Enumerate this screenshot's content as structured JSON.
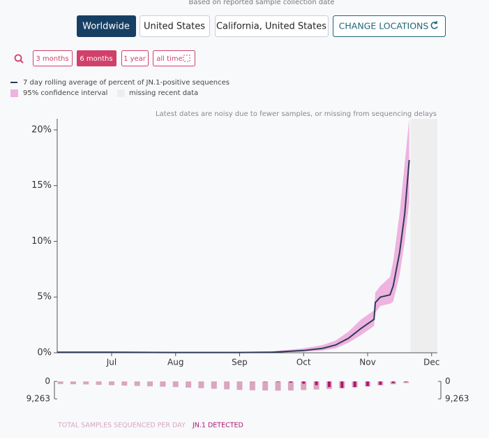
{
  "header": {
    "subtitle": "Based on reported sample collection date"
  },
  "location_buttons": [
    "Worldwide",
    "United States",
    "California, United States"
  ],
  "change_button": "CHANGE LOCATIONS",
  "range_buttons": [
    "3 months",
    "6 months",
    "1 year",
    "all time"
  ],
  "chart_data": {
    "type": "line",
    "annotation": "Latest dates are noisy due to fewer samples, or missing from sequencing delays",
    "x": [
      6.15,
      7,
      8,
      9,
      9.5,
      10,
      10.3,
      10.5,
      10.7,
      10.9,
      11.1,
      11.12,
      11.2,
      11.35,
      11.4,
      11.5,
      11.58,
      11.65
    ],
    "series": [
      {
        "name": "7 day rolling average of percent of JN.1-positive sequences",
        "color": "#2e3a59",
        "values": [
          0.05,
          0.05,
          0.02,
          0.02,
          0.05,
          0.2,
          0.4,
          0.7,
          1.3,
          2.2,
          3,
          4.5,
          5,
          5.2,
          6,
          9,
          12.5,
          17.3
        ]
      }
    ],
    "band": {
      "name": "95% confidence interval",
      "color": "#eeb3df",
      "lower": [
        0,
        0,
        0,
        0,
        0,
        0.1,
        0.2,
        0.4,
        0.9,
        1.6,
        2.4,
        3.6,
        4.2,
        4.4,
        4.6,
        7,
        10,
        13.5
      ],
      "upper": [
        0.12,
        0.12,
        0.08,
        0.08,
        0.12,
        0.4,
        0.7,
        1.1,
        1.9,
        3,
        3.8,
        5.4,
        6,
        6.8,
        8.2,
        12.5,
        17,
        21
      ]
    },
    "missing": {
      "name": "missing recent data",
      "from": 11.67,
      "color": "#eeeeee"
    },
    "xlim": [
      6.15,
      12.09
    ],
    "xticks": [
      {
        "value": 7,
        "label": "Jul"
      },
      {
        "value": 8,
        "label": "Aug"
      },
      {
        "value": 9,
        "label": "Sep"
      },
      {
        "value": 10,
        "label": "Oct"
      },
      {
        "value": 11,
        "label": "Nov"
      },
      {
        "value": 12,
        "label": "Dec"
      }
    ],
    "ylim": [
      0,
      21
    ],
    "yticks": [
      {
        "value": 0,
        "label": "0%"
      },
      {
        "value": 5,
        "label": "5%"
      },
      {
        "value": 10,
        "label": "10%"
      },
      {
        "value": 15,
        "label": "15%"
      },
      {
        "value": 20,
        "label": "20%"
      }
    ],
    "samples": {
      "x": [
        6.2,
        6.4,
        6.6,
        6.8,
        7,
        7.2,
        7.4,
        7.6,
        7.8,
        8,
        8.2,
        8.4,
        8.6,
        8.8,
        9,
        9.2,
        9.4,
        9.6,
        9.8,
        10,
        10.2,
        10.4,
        10.6,
        10.8,
        11,
        11.2,
        11.4,
        11.6
      ],
      "total": [
        1400,
        1500,
        1600,
        1800,
        2000,
        2200,
        2400,
        2600,
        2800,
        3000,
        3300,
        3600,
        3900,
        4200,
        4500,
        4700,
        4800,
        4900,
        4800,
        4600,
        4300,
        4000,
        3600,
        3200,
        2700,
        2100,
        1500,
        900
      ],
      "detected": [
        0,
        0,
        0,
        0,
        0,
        0,
        0,
        0,
        0,
        0,
        0,
        0,
        0,
        0,
        0,
        50,
        150,
        300,
        600,
        1200,
        2000,
        3000,
        3500,
        3000,
        2500,
        1800,
        900,
        300
      ],
      "total_name": "TOTAL SAMPLES SEQUENCED PER DAY",
      "total_color": "#d9a6c0",
      "detected_name": "JN.1 DETECTED",
      "detected_color": "#b0166e",
      "ylim": [
        0,
        9263
      ],
      "yticks": [
        0,
        {
          "value": 9263,
          "label": "9,263"
        }
      ]
    }
  }
}
